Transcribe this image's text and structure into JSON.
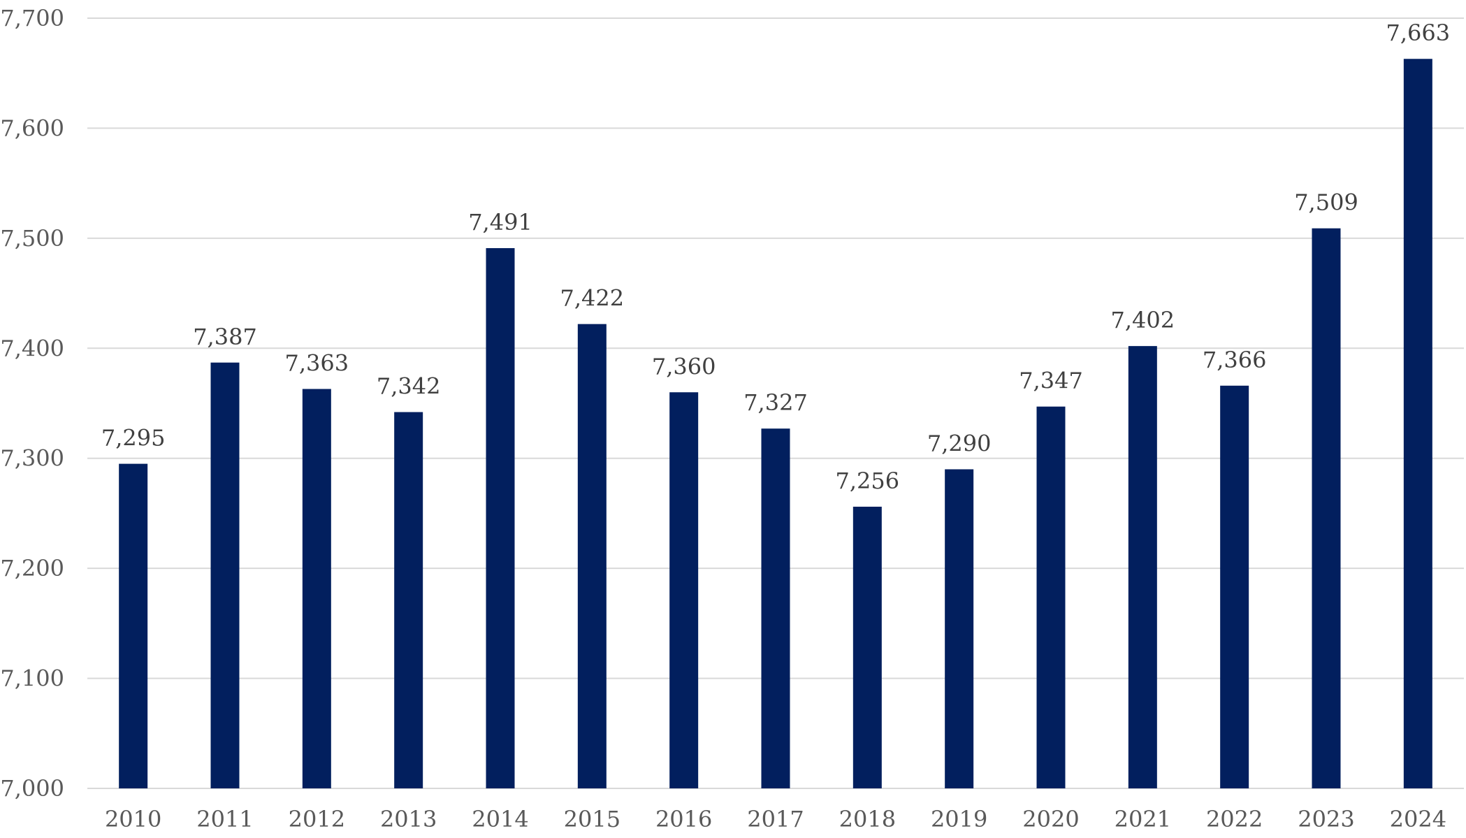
{
  "chart_data": {
    "type": "bar",
    "categories": [
      "2010",
      "2011",
      "2012",
      "2013",
      "2014",
      "2015",
      "2016",
      "2017",
      "2018",
      "2019",
      "2020",
      "2021",
      "2022",
      "2023",
      "2024"
    ],
    "values": [
      7295,
      7387,
      7363,
      7342,
      7491,
      7422,
      7360,
      7327,
      7256,
      7290,
      7347,
      7402,
      7366,
      7509,
      7663
    ],
    "data_labels": [
      "7,295",
      "7,387",
      "7,363",
      "7,342",
      "7,491",
      "7,422",
      "7,360",
      "7,327",
      "7,256",
      "7,290",
      "7,347",
      "7,402",
      "7,366",
      "7,509",
      "7,663"
    ],
    "y_ticks": [
      7000,
      7100,
      7200,
      7300,
      7400,
      7500,
      7600,
      7700
    ],
    "y_tick_labels": [
      "7,000",
      "7,100",
      "7,200",
      "7,300",
      "7,400",
      "7,500",
      "7,600",
      "7,700"
    ],
    "ylim": [
      7000,
      7700
    ],
    "title": "",
    "xlabel": "",
    "ylabel": "",
    "grid": true,
    "legend": "none",
    "colors": {
      "bar": "#021F5E",
      "grid": "#D9D9D9",
      "tick_text": "#595959",
      "label_text": "#404040"
    }
  }
}
